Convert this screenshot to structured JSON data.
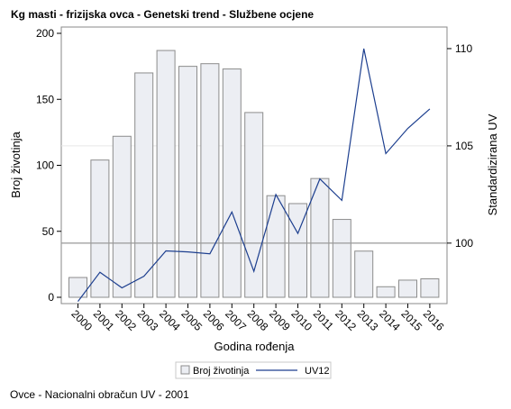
{
  "title": "Kg masti - frizijska ovca - Genetski trend - Službene ocjene",
  "footnote": "Ovce - Nacionalni obračun UV - 2001",
  "colors": {
    "bar_fill": "#eceef3",
    "bar_stroke": "#8c8c8c",
    "line": "#1d3f8f",
    "frame": "#888888",
    "refline": "#999999"
  },
  "chart_data": {
    "type": "bar",
    "xlabel": "Godina rođenja",
    "ylabel": "Broj životinja",
    "y2label": "Standardizirana UV",
    "categories": [
      "2000",
      "2001",
      "2002",
      "2003",
      "2004",
      "2005",
      "2006",
      "2007",
      "2008",
      "2009",
      "2010",
      "2011",
      "2012",
      "2013",
      "2014",
      "2015",
      "2016"
    ],
    "ylim": [
      0,
      200
    ],
    "yticks": [
      0,
      50,
      100,
      150,
      200
    ],
    "y2lim": [
      96.89,
      111.11
    ],
    "y2ticks": [
      100,
      105,
      110
    ],
    "reference_line_y2": 100,
    "series": [
      {
        "name": "Broj životinja",
        "type": "bar",
        "axis": "left",
        "values": [
          15,
          104,
          122,
          170,
          187,
          175,
          177,
          173,
          140,
          77,
          71,
          90,
          59,
          35,
          8,
          13,
          14
        ]
      },
      {
        "name": "UV12",
        "type": "line",
        "axis": "right",
        "values": [
          97.0,
          98.5,
          97.7,
          98.3,
          99.6,
          99.55,
          99.45,
          101.6,
          98.55,
          102.5,
          100.5,
          103.3,
          102.2,
          110.0,
          104.6,
          105.9,
          106.9
        ]
      }
    ],
    "legend_position": "bottom"
  }
}
